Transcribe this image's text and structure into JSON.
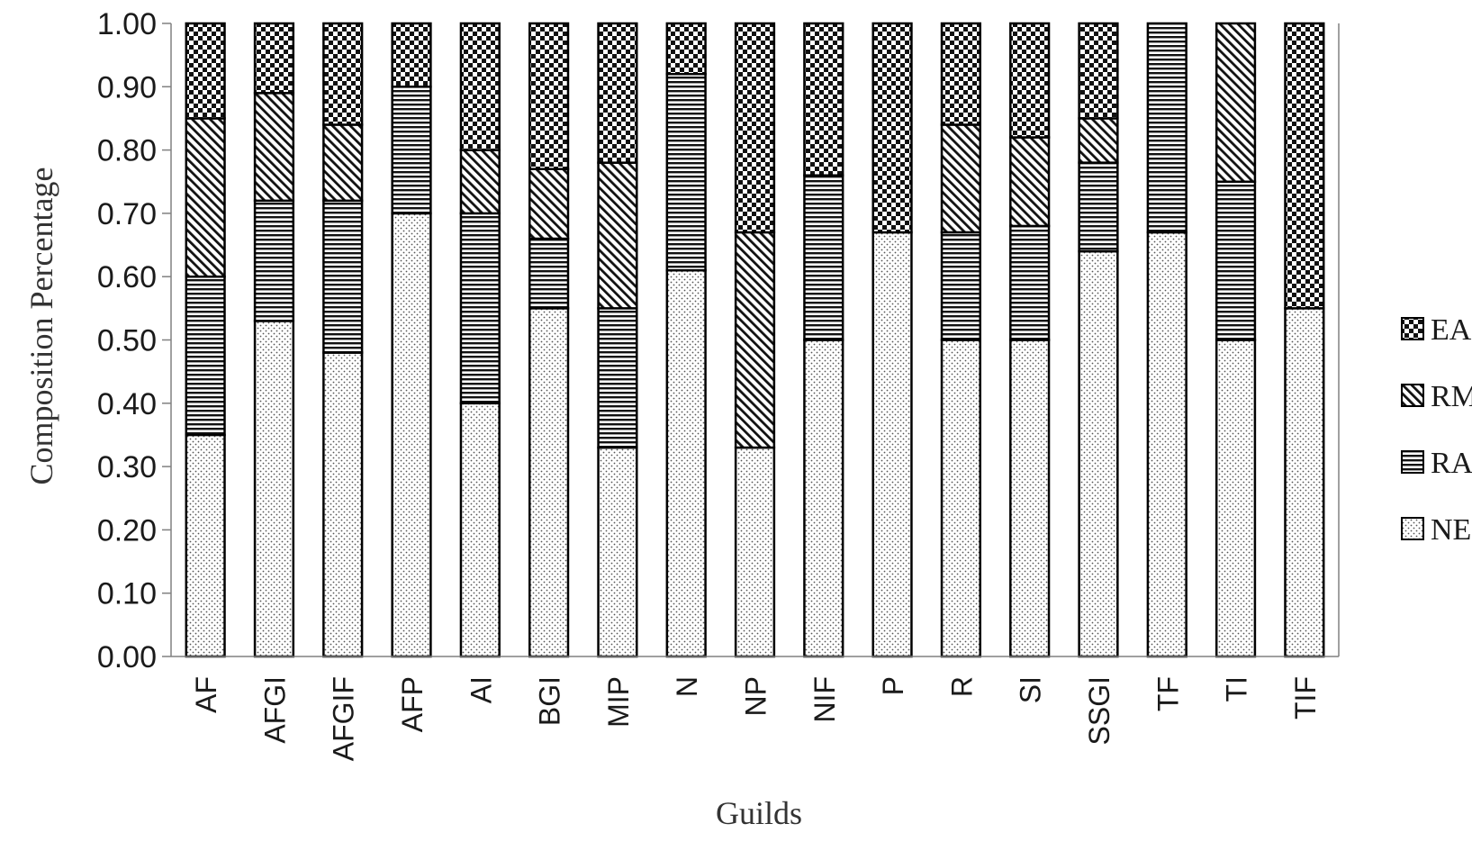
{
  "chart_data": {
    "type": "bar",
    "stacked": true,
    "xlabel": "Guilds",
    "ylabel": "Composition Percentage",
    "ylim": [
      0,
      1
    ],
    "yticks": [
      "0.00",
      "0.10",
      "0.20",
      "0.30",
      "0.40",
      "0.50",
      "0.60",
      "0.70",
      "0.80",
      "0.90",
      "1.00"
    ],
    "grid": false,
    "legend_position": "right",
    "categories": [
      "AF",
      "AFGI",
      "AFGIF",
      "AFP",
      "AI",
      "BGI",
      "MIP",
      "N",
      "NP",
      "NIF",
      "P",
      "R",
      "SI",
      "SSGI",
      "TF",
      "TI",
      "TIF"
    ],
    "series": [
      {
        "name": "NE",
        "pattern": "dots",
        "values": [
          0.35,
          0.53,
          0.48,
          0.7,
          0.4,
          0.55,
          0.33,
          0.61,
          0.33,
          0.5,
          0.67,
          0.5,
          0.5,
          0.64,
          0.67,
          0.5,
          0.55
        ]
      },
      {
        "name": "RA",
        "pattern": "horizontal",
        "values": [
          0.25,
          0.19,
          0.24,
          0.2,
          0.3,
          0.11,
          0.22,
          0.31,
          0.0,
          0.26,
          0.0,
          0.17,
          0.18,
          0.14,
          0.33,
          0.25,
          0.0
        ]
      },
      {
        "name": "RM",
        "pattern": "diagonal",
        "values": [
          0.25,
          0.17,
          0.12,
          0.0,
          0.1,
          0.11,
          0.23,
          0.0,
          0.34,
          0.0,
          0.0,
          0.17,
          0.14,
          0.07,
          0.0,
          0.25,
          0.0
        ]
      },
      {
        "name": "EA",
        "pattern": "checker",
        "values": [
          0.15,
          0.11,
          0.16,
          0.1,
          0.2,
          0.23,
          0.22,
          0.08,
          0.33,
          0.24,
          0.33,
          0.16,
          0.18,
          0.15,
          0.0,
          0.0,
          0.45
        ]
      }
    ],
    "legend_order": [
      "EA",
      "RM",
      "RA",
      "NE"
    ],
    "legend_labels": [
      "EA",
      "RM",
      "RA",
      "NE"
    ]
  }
}
